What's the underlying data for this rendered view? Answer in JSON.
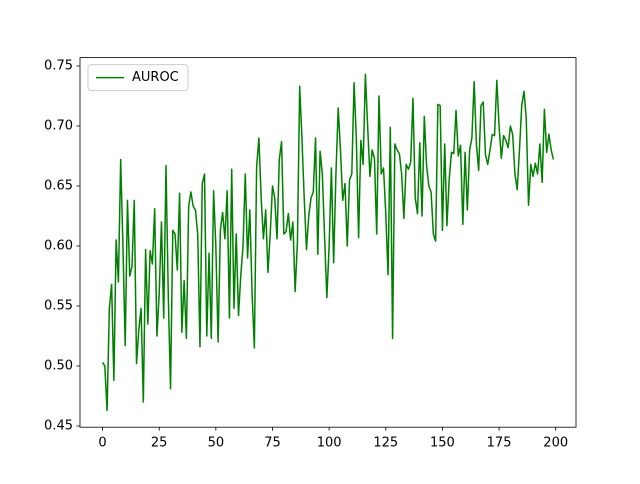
{
  "chart_data": {
    "type": "line",
    "x": [
      0,
      1,
      2,
      3,
      4,
      5,
      6,
      7,
      8,
      9,
      10,
      11,
      12,
      13,
      14,
      15,
      16,
      17,
      18,
      19,
      20,
      21,
      22,
      23,
      24,
      25,
      26,
      27,
      28,
      29,
      30,
      31,
      32,
      33,
      34,
      35,
      36,
      37,
      38,
      39,
      40,
      41,
      42,
      43,
      44,
      45,
      46,
      47,
      48,
      49,
      50,
      51,
      52,
      53,
      54,
      55,
      56,
      57,
      58,
      59,
      60,
      61,
      62,
      63,
      64,
      65,
      66,
      67,
      68,
      69,
      70,
      71,
      72,
      73,
      74,
      75,
      76,
      77,
      78,
      79,
      80,
      81,
      82,
      83,
      84,
      85,
      86,
      87,
      88,
      89,
      90,
      91,
      92,
      93,
      94,
      95,
      96,
      97,
      98,
      99,
      100,
      101,
      102,
      103,
      104,
      105,
      106,
      107,
      108,
      109,
      110,
      111,
      112,
      113,
      114,
      115,
      116,
      117,
      118,
      119,
      120,
      121,
      122,
      123,
      124,
      125,
      126,
      127,
      128,
      129,
      130,
      131,
      132,
      133,
      134,
      135,
      136,
      137,
      138,
      139,
      140,
      141,
      142,
      143,
      144,
      145,
      146,
      147,
      148,
      149,
      150,
      151,
      152,
      153,
      154,
      155,
      156,
      157,
      158,
      159,
      160,
      161,
      162,
      163,
      164,
      165,
      166,
      167,
      168,
      169,
      170,
      171,
      172,
      173,
      174,
      175,
      176,
      177,
      178,
      179,
      180,
      181,
      182,
      183,
      184,
      185,
      186,
      187,
      188,
      189,
      190,
      191,
      192,
      193,
      194,
      195,
      196,
      197,
      198,
      199
    ],
    "series": [
      {
        "name": "AUROC",
        "color": "#008000",
        "values": [
          0.503,
          0.5,
          0.463,
          0.548,
          0.568,
          0.488,
          0.605,
          0.57,
          0.672,
          0.6,
          0.517,
          0.638,
          0.575,
          0.583,
          0.638,
          0.502,
          0.53,
          0.548,
          0.47,
          0.597,
          0.535,
          0.596,
          0.585,
          0.631,
          0.525,
          0.56,
          0.62,
          0.54,
          0.667,
          0.56,
          0.481,
          0.613,
          0.61,
          0.58,
          0.644,
          0.528,
          0.571,
          0.523,
          0.633,
          0.645,
          0.633,
          0.63,
          0.61,
          0.516,
          0.652,
          0.66,
          0.525,
          0.594,
          0.523,
          0.646,
          0.6,
          0.52,
          0.613,
          0.628,
          0.606,
          0.646,
          0.54,
          0.664,
          0.548,
          0.61,
          0.542,
          0.575,
          0.6,
          0.66,
          0.59,
          0.63,
          0.56,
          0.515,
          0.666,
          0.69,
          0.64,
          0.606,
          0.63,
          0.578,
          0.61,
          0.65,
          0.64,
          0.606,
          0.672,
          0.687,
          0.61,
          0.612,
          0.627,
          0.605,
          0.62,
          0.562,
          0.603,
          0.733,
          0.69,
          0.64,
          0.597,
          0.625,
          0.64,
          0.645,
          0.69,
          0.593,
          0.679,
          0.66,
          0.607,
          0.557,
          0.6,
          0.665,
          0.586,
          0.66,
          0.715,
          0.68,
          0.638,
          0.652,
          0.6,
          0.655,
          0.66,
          0.736,
          0.69,
          0.607,
          0.688,
          0.668,
          0.743,
          0.7,
          0.658,
          0.68,
          0.673,
          0.61,
          0.725,
          0.66,
          0.665,
          0.627,
          0.576,
          0.699,
          0.523,
          0.685,
          0.68,
          0.677,
          0.66,
          0.623,
          0.668,
          0.664,
          0.67,
          0.723,
          0.64,
          0.627,
          0.686,
          0.625,
          0.708,
          0.667,
          0.65,
          0.645,
          0.61,
          0.604,
          0.718,
          0.717,
          0.613,
          0.685,
          0.617,
          0.656,
          0.678,
          0.677,
          0.713,
          0.675,
          0.684,
          0.618,
          0.678,
          0.63,
          0.68,
          0.69,
          0.737,
          0.685,
          0.663,
          0.717,
          0.72,
          0.676,
          0.668,
          0.68,
          0.693,
          0.692,
          0.738,
          0.7,
          0.673,
          0.692,
          0.688,
          0.682,
          0.7,
          0.693,
          0.66,
          0.647,
          0.68,
          0.717,
          0.729,
          0.706,
          0.634,
          0.668,
          0.658,
          0.669,
          0.66,
          0.685,
          0.653,
          0.714,
          0.678,
          0.693,
          0.68,
          0.672
        ]
      }
    ],
    "xlim": [
      -9.95,
      208.95
    ],
    "xticks": [
      0,
      25,
      50,
      75,
      100,
      125,
      150,
      175,
      200
    ],
    "ylim": [
      0.449,
      0.757
    ],
    "yticks": [
      0.45,
      {
        "value": 0.5,
        "label": "0.50"
      },
      0.55,
      {
        "value": 0.6,
        "label": "0.60"
      },
      0.65,
      {
        "value": 0.7,
        "label": "0.70"
      },
      0.75
    ],
    "grid": false,
    "legend": "upper left"
  }
}
